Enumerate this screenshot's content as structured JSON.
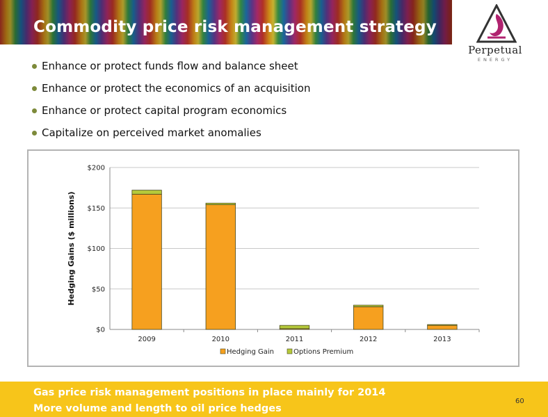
{
  "slide": {
    "title": "Commodity price risk management strategy",
    "logo_name": "Perpetual",
    "logo_sub": "ENERGY",
    "bullets": [
      "Enhance or protect funds flow and balance sheet",
      "Enhance or protect the economics of an acquisition",
      "Enhance or protect capital program economics",
      "Capitalize on perceived market anomalies"
    ],
    "footer_lines": [
      "Gas price risk management positions in place mainly for 2014",
      "More volume and length to oil price hedges"
    ],
    "page_number": "60"
  },
  "colors": {
    "hedging_gain": "#f6a01f",
    "options_premium": "#b5c93a",
    "footer": "#f7c51a",
    "logo_accent": "#b0226f"
  },
  "chart_data": {
    "type": "bar",
    "stacked": true,
    "categories": [
      "2009",
      "2010",
      "2011",
      "2012",
      "2013"
    ],
    "series": [
      {
        "name": "Hedging Gain",
        "values": [
          167,
          154,
          1,
          28,
          5
        ]
      },
      {
        "name": "Options Premium",
        "values": [
          5,
          2,
          4,
          2,
          1
        ]
      }
    ],
    "xlabel": "",
    "ylabel": "Hedging Gains ($ millions)",
    "ylim": [
      0,
      200
    ],
    "yticks": [
      0,
      50,
      100,
      150,
      200
    ],
    "ytick_labels": [
      "$0",
      "$50",
      "$100",
      "$150",
      "$200"
    ],
    "grid": true,
    "legend_position": "bottom"
  }
}
